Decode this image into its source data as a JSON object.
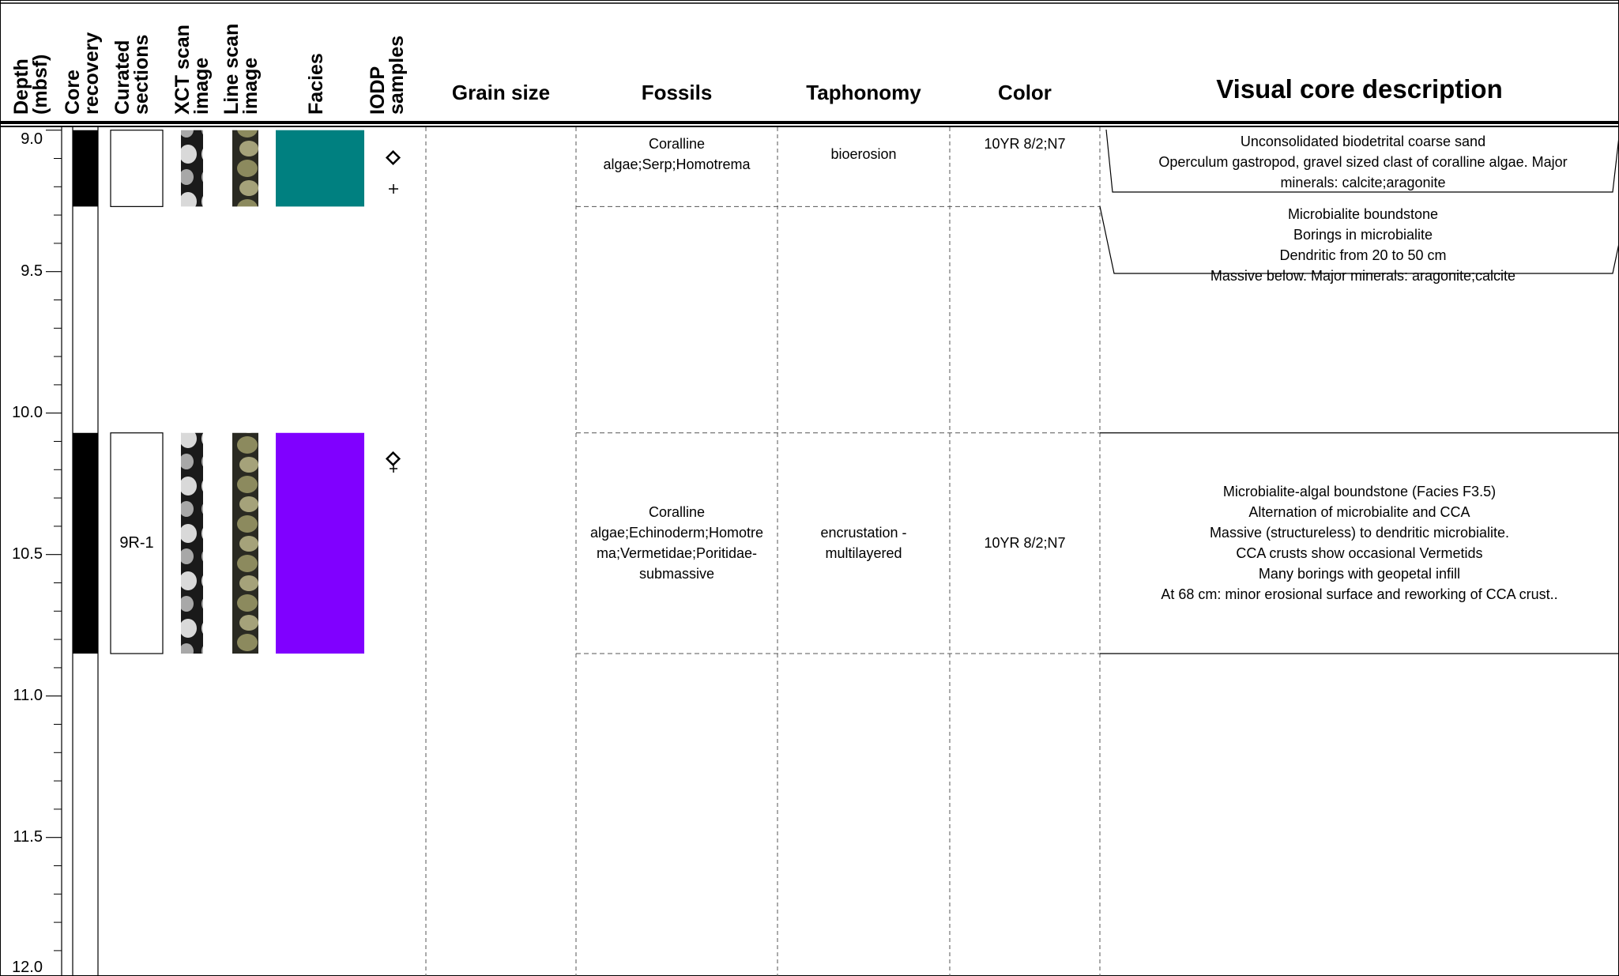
{
  "header": {
    "columns": [
      "Depth (mbsf)",
      "Core recovery",
      "Curated sections",
      "XCT scan image",
      "Line scan image",
      "Facies",
      "IODP samples",
      "Grain size",
      "Fossils",
      "Taphonomy",
      "Color",
      "Visual core description"
    ]
  },
  "depth_axis": {
    "ticks": [
      {
        "value": 9,
        "label": "9.0"
      },
      {
        "value": 9.5,
        "label": "9.5"
      },
      {
        "value": 10,
        "label": "10.0"
      },
      {
        "value": 10.5,
        "label": "10.5"
      },
      {
        "value": 11,
        "label": "11.0"
      },
      {
        "value": 11.5,
        "label": "11.5"
      },
      {
        "value": 12,
        "label": "12.0"
      }
    ],
    "minor_ticks": [
      9.1,
      9.2,
      9.3,
      9.4,
      9.6,
      9.7,
      9.8,
      9.9,
      10.1,
      10.2,
      10.3,
      10.4,
      10.6,
      10.7,
      10.8,
      10.9,
      11.1,
      11.2,
      11.3,
      11.4,
      11.6,
      11.7,
      11.8,
      11.9
    ]
  },
  "cores": [
    {
      "top": 9.0,
      "bottom": 9.27,
      "facies_color": "#008080",
      "fossils": "Coralline algae;Serp;Homotrema",
      "taphonomy": "bioerosion",
      "color": "10YR 8/2;N7",
      "description": [
        [
          "Unconsolidated biodetrital coarse sand",
          "Operculum gastropod, gravel sized clast of coralline algae. Major minerals: calcite;aragonite"
        ],
        [
          "Microbialite boundstone",
          "Borings in microbialite",
          "Dendritic from 20 to 50 cm",
          "Massive below. Major minerals: aragonite;calcite"
        ]
      ]
    },
    {
      "top": 10.07,
      "bottom": 10.85,
      "section": "9R-1",
      "facies_color": "#8000ff",
      "fossils": "Coralline algae;Echinoderm;Homotrema;Vermetidae;Poritidae-submassive",
      "taphonomy": "encrustation - multilayered",
      "color": "10YR 8/2;N7",
      "description": [
        [
          "Microbialite-algal boundstone (Facies F3.5)",
          "Alternation of microbialite and CCA",
          "Massive (structureless) to dendritic microbialite.",
          "CCA crusts show occasional Vermetids",
          "Many borings with geopetal infill",
          "At 68 cm: minor erosional surface and reworking of CCA crust.."
        ]
      ]
    }
  ]
}
